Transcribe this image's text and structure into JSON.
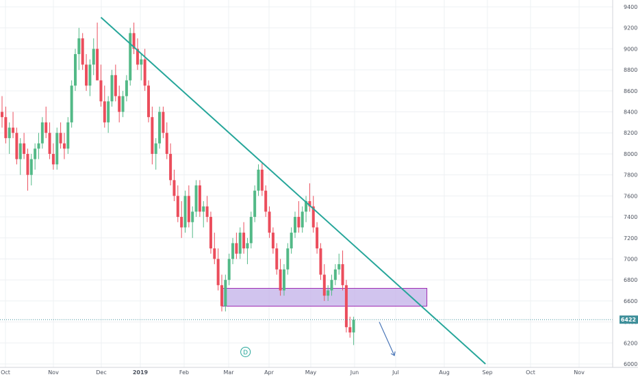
{
  "chart_data": {
    "type": "candlestick",
    "x_axis": {
      "ticks": [
        "Oct",
        "Nov",
        "Dec",
        "2019",
        "Feb",
        "Mar",
        "Apr",
        "May",
        "Jun",
        "Jul",
        "Aug",
        "Sep",
        "Oct",
        "Nov"
      ]
    },
    "y_axis": {
      "range": [
        6000,
        9400
      ],
      "ticks": [
        "9400",
        "9200",
        "9000",
        "8800",
        "8600",
        "8400",
        "8200",
        "8000",
        "7800",
        "7600",
        "7400",
        "7200",
        "7000",
        "6800",
        "6600",
        "6400",
        "6200",
        "6000"
      ],
      "position": "right"
    },
    "last_price": {
      "label": "6422",
      "value": 6422
    },
    "candles_approx": [
      {
        "o": 8400,
        "h": 8550,
        "l": 8250,
        "c": 8350
      },
      {
        "o": 8350,
        "h": 8450,
        "l": 8100,
        "c": 8150
      },
      {
        "o": 8150,
        "h": 8300,
        "l": 8000,
        "c": 8250
      },
      {
        "o": 8250,
        "h": 8400,
        "l": 8150,
        "c": 8200
      },
      {
        "o": 8200,
        "h": 8250,
        "l": 7900,
        "c": 7950
      },
      {
        "o": 7950,
        "h": 8150,
        "l": 7800,
        "c": 8100
      },
      {
        "o": 8100,
        "h": 8200,
        "l": 7950,
        "c": 8000
      },
      {
        "o": 8000,
        "h": 8050,
        "l": 7650,
        "c": 7800
      },
      {
        "o": 7800,
        "h": 8000,
        "l": 7700,
        "c": 7950
      },
      {
        "o": 7950,
        "h": 8100,
        "l": 7850,
        "c": 8050
      },
      {
        "o": 8050,
        "h": 8200,
        "l": 7950,
        "c": 8100
      },
      {
        "o": 8100,
        "h": 8350,
        "l": 8050,
        "c": 8300
      },
      {
        "o": 8300,
        "h": 8450,
        "l": 8150,
        "c": 8200
      },
      {
        "o": 8200,
        "h": 8300,
        "l": 7950,
        "c": 8000
      },
      {
        "o": 8000,
        "h": 8100,
        "l": 7850,
        "c": 7900
      },
      {
        "o": 7900,
        "h": 8250,
        "l": 7850,
        "c": 8200
      },
      {
        "o": 8200,
        "h": 8300,
        "l": 8050,
        "c": 8100
      },
      {
        "o": 8100,
        "h": 8200,
        "l": 7950,
        "c": 8050
      },
      {
        "o": 8050,
        "h": 8350,
        "l": 8000,
        "c": 8300
      },
      {
        "o": 8300,
        "h": 8700,
        "l": 8250,
        "c": 8650
      },
      {
        "o": 8650,
        "h": 9000,
        "l": 8600,
        "c": 8950
      },
      {
        "o": 8950,
        "h": 9200,
        "l": 8800,
        "c": 9100
      },
      {
        "o": 9100,
        "h": 9150,
        "l": 8800,
        "c": 8850
      },
      {
        "o": 8850,
        "h": 8950,
        "l": 8600,
        "c": 8650
      },
      {
        "o": 8650,
        "h": 8900,
        "l": 8550,
        "c": 8850
      },
      {
        "o": 8850,
        "h": 9100,
        "l": 8750,
        "c": 9000
      },
      {
        "o": 9000,
        "h": 9250,
        "l": 8900,
        "c": 8700
      },
      {
        "o": 8700,
        "h": 8850,
        "l": 8450,
        "c": 8500
      },
      {
        "o": 8500,
        "h": 8650,
        "l": 8250,
        "c": 8300
      },
      {
        "o": 8300,
        "h": 8550,
        "l": 8200,
        "c": 8500
      },
      {
        "o": 8500,
        "h": 8800,
        "l": 8450,
        "c": 8750
      },
      {
        "o": 8750,
        "h": 8850,
        "l": 8500,
        "c": 8550
      },
      {
        "o": 8550,
        "h": 8650,
        "l": 8300,
        "c": 8400
      },
      {
        "o": 8400,
        "h": 8600,
        "l": 8350,
        "c": 8550
      },
      {
        "o": 8550,
        "h": 8750,
        "l": 8500,
        "c": 8700
      },
      {
        "o": 8700,
        "h": 9200,
        "l": 8650,
        "c": 9150
      },
      {
        "o": 9150,
        "h": 9250,
        "l": 8950,
        "c": 9000
      },
      {
        "o": 9000,
        "h": 9100,
        "l": 8800,
        "c": 8850
      },
      {
        "o": 8850,
        "h": 8950,
        "l": 8700,
        "c": 8900
      },
      {
        "o": 8900,
        "h": 9000,
        "l": 8600,
        "c": 8650
      },
      {
        "o": 8650,
        "h": 8700,
        "l": 8300,
        "c": 8350
      },
      {
        "o": 8350,
        "h": 8450,
        "l": 7900,
        "c": 8000
      },
      {
        "o": 8000,
        "h": 8150,
        "l": 7850,
        "c": 8100
      },
      {
        "o": 8100,
        "h": 8450,
        "l": 8050,
        "c": 8400
      },
      {
        "o": 8400,
        "h": 8450,
        "l": 8150,
        "c": 8200
      },
      {
        "o": 8200,
        "h": 8300,
        "l": 7950,
        "c": 8000
      },
      {
        "o": 8000,
        "h": 8100,
        "l": 7700,
        "c": 7750
      },
      {
        "o": 7750,
        "h": 7850,
        "l": 7550,
        "c": 7600
      },
      {
        "o": 7600,
        "h": 7700,
        "l": 7350,
        "c": 7400
      },
      {
        "o": 7400,
        "h": 7550,
        "l": 7200,
        "c": 7300
      },
      {
        "o": 7300,
        "h": 7650,
        "l": 7250,
        "c": 7600
      },
      {
        "o": 7600,
        "h": 7700,
        "l": 7300,
        "c": 7350
      },
      {
        "o": 7350,
        "h": 7500,
        "l": 7200,
        "c": 7450
      },
      {
        "o": 7450,
        "h": 7750,
        "l": 7400,
        "c": 7700
      },
      {
        "o": 7700,
        "h": 7750,
        "l": 7400,
        "c": 7450
      },
      {
        "o": 7450,
        "h": 7550,
        "l": 7300,
        "c": 7500
      },
      {
        "o": 7500,
        "h": 7600,
        "l": 7350,
        "c": 7400
      },
      {
        "o": 7400,
        "h": 7450,
        "l": 7050,
        "c": 7100
      },
      {
        "o": 7100,
        "h": 7250,
        "l": 6950,
        "c": 7000
      },
      {
        "o": 7000,
        "h": 7100,
        "l": 6700,
        "c": 6750
      },
      {
        "o": 6750,
        "h": 6850,
        "l": 6500,
        "c": 6550
      },
      {
        "o": 6550,
        "h": 6850,
        "l": 6500,
        "c": 6800
      },
      {
        "o": 6800,
        "h": 7050,
        "l": 6750,
        "c": 7000
      },
      {
        "o": 7000,
        "h": 7200,
        "l": 6950,
        "c": 7150
      },
      {
        "o": 7150,
        "h": 7250,
        "l": 7000,
        "c": 7050
      },
      {
        "o": 7050,
        "h": 7300,
        "l": 7000,
        "c": 7250
      },
      {
        "o": 7250,
        "h": 7350,
        "l": 7050,
        "c": 7100
      },
      {
        "o": 7100,
        "h": 7200,
        "l": 6950,
        "c": 7150
      },
      {
        "o": 7150,
        "h": 7450,
        "l": 7100,
        "c": 7400
      },
      {
        "o": 7400,
        "h": 7700,
        "l": 7350,
        "c": 7650
      },
      {
        "o": 7650,
        "h": 7900,
        "l": 7600,
        "c": 7850
      },
      {
        "o": 7850,
        "h": 7920,
        "l": 7600,
        "c": 7650
      },
      {
        "o": 7650,
        "h": 7700,
        "l": 7400,
        "c": 7450
      },
      {
        "o": 7450,
        "h": 7500,
        "l": 7200,
        "c": 7250
      },
      {
        "o": 7250,
        "h": 7300,
        "l": 7050,
        "c": 7100
      },
      {
        "o": 7100,
        "h": 7150,
        "l": 6850,
        "c": 6900
      },
      {
        "o": 6900,
        "h": 7000,
        "l": 6650,
        "c": 6700
      },
      {
        "o": 6700,
        "h": 6950,
        "l": 6650,
        "c": 6900
      },
      {
        "o": 6900,
        "h": 7150,
        "l": 6850,
        "c": 7100
      },
      {
        "o": 7100,
        "h": 7300,
        "l": 7050,
        "c": 7250
      },
      {
        "o": 7250,
        "h": 7450,
        "l": 7200,
        "c": 7400
      },
      {
        "o": 7400,
        "h": 7550,
        "l": 7250,
        "c": 7300
      },
      {
        "o": 7300,
        "h": 7500,
        "l": 7250,
        "c": 7450
      },
      {
        "o": 7450,
        "h": 7600,
        "l": 7350,
        "c": 7550
      },
      {
        "o": 7550,
        "h": 7720,
        "l": 7450,
        "c": 7500
      },
      {
        "o": 7500,
        "h": 7600,
        "l": 7250,
        "c": 7300
      },
      {
        "o": 7300,
        "h": 7350,
        "l": 7050,
        "c": 7100
      },
      {
        "o": 7100,
        "h": 7150,
        "l": 6800,
        "c": 6850
      },
      {
        "o": 6850,
        "h": 6950,
        "l": 6600,
        "c": 6650
      },
      {
        "o": 6650,
        "h": 6750,
        "l": 6600,
        "c": 6700
      },
      {
        "o": 6700,
        "h": 6850,
        "l": 6650,
        "c": 6800
      },
      {
        "o": 6800,
        "h": 6950,
        "l": 6750,
        "c": 6900
      },
      {
        "o": 6900,
        "h": 7050,
        "l": 6850,
        "c": 6950
      },
      {
        "o": 6950,
        "h": 7080,
        "l": 6700,
        "c": 6750
      },
      {
        "o": 6750,
        "h": 6800,
        "l": 6300,
        "c": 6350
      },
      {
        "o": 6350,
        "h": 6450,
        "l": 6250,
        "c": 6300
      },
      {
        "o": 6300,
        "h": 6450,
        "l": 6180,
        "c": 6422
      }
    ],
    "annotations": {
      "trendline": {
        "from": {
          "index": 27,
          "price": 9300
        },
        "to": {
          "index": 132,
          "price": 6000
        }
      },
      "support_zone": {
        "from_index": 60,
        "to_index": 116,
        "top": 6720,
        "bottom": 6550
      },
      "projection_arrow": {
        "from": {
          "index": 103,
          "price": 6400
        },
        "to": {
          "index": 106,
          "price": 6080
        }
      },
      "marker": {
        "label": "D",
        "index": 59,
        "price": 6075
      }
    },
    "grid": true,
    "colors": {
      "up": "#53b987",
      "down": "#eb4d5c",
      "trendline": "#26a69a",
      "zone_fill": "#c5b5ea",
      "zone_border": "#9c27b0",
      "arrow": "#4a76b8",
      "price_label_bg": "#3e8f9a",
      "grid": "#eef0f3",
      "axis_text": "#4c525e"
    }
  }
}
